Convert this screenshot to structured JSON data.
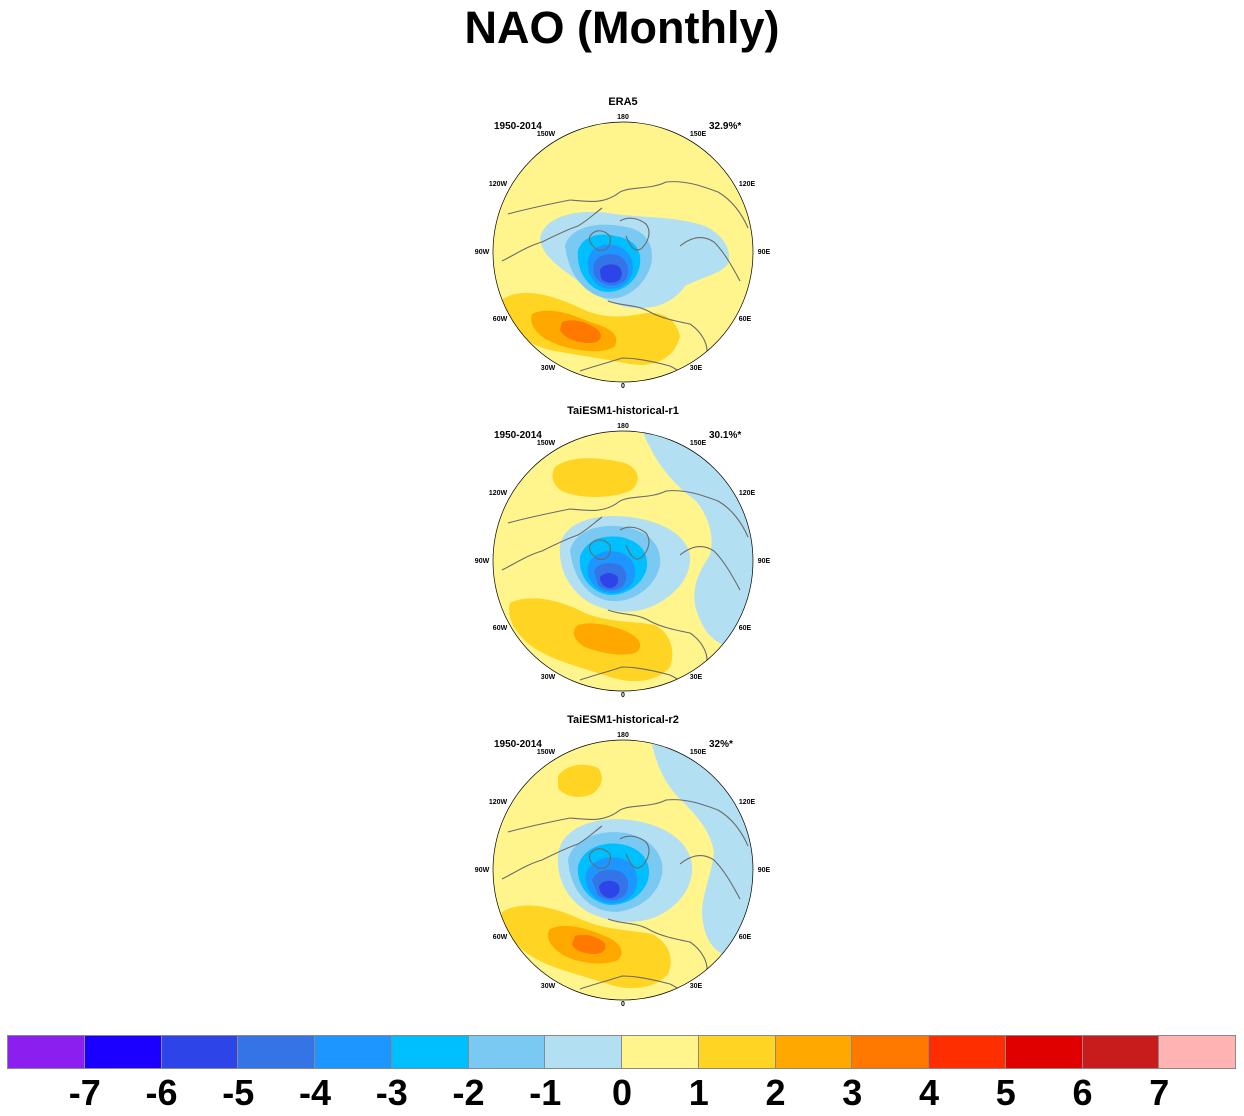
{
  "title": "NAO (Monthly)",
  "panels": [
    {
      "title": "ERA5",
      "period": "1950-2014",
      "variance": "32.9%*"
    },
    {
      "title": "TaiESM1-historical-r1",
      "period": "1950-2014",
      "variance": "30.1%*"
    },
    {
      "title": "TaiESM1-historical-r2",
      "period": "1950-2014",
      "variance": "32%*"
    }
  ],
  "lon_labels": [
    "180",
    "150E",
    "120E",
    "90E",
    "60E",
    "30E",
    "0",
    "30W",
    "60W",
    "90W",
    "120W",
    "150W"
  ],
  "colorbar": {
    "colors": [
      "#8a1ff0",
      "#1c00ff",
      "#2c44e8",
      "#3474e6",
      "#1e96ff",
      "#00bfff",
      "#79c9f2",
      "#b2dff2",
      "#fff58c",
      "#ffd422",
      "#ffa800",
      "#ff7800",
      "#ff2e00",
      "#e00000",
      "#c81c1c",
      "#ffb3b3"
    ],
    "labels": [
      "-7",
      "-6",
      "-5",
      "-4",
      "-3",
      "-2",
      "-1",
      "0",
      "1",
      "2",
      "3",
      "4",
      "5",
      "6",
      "7"
    ]
  }
}
